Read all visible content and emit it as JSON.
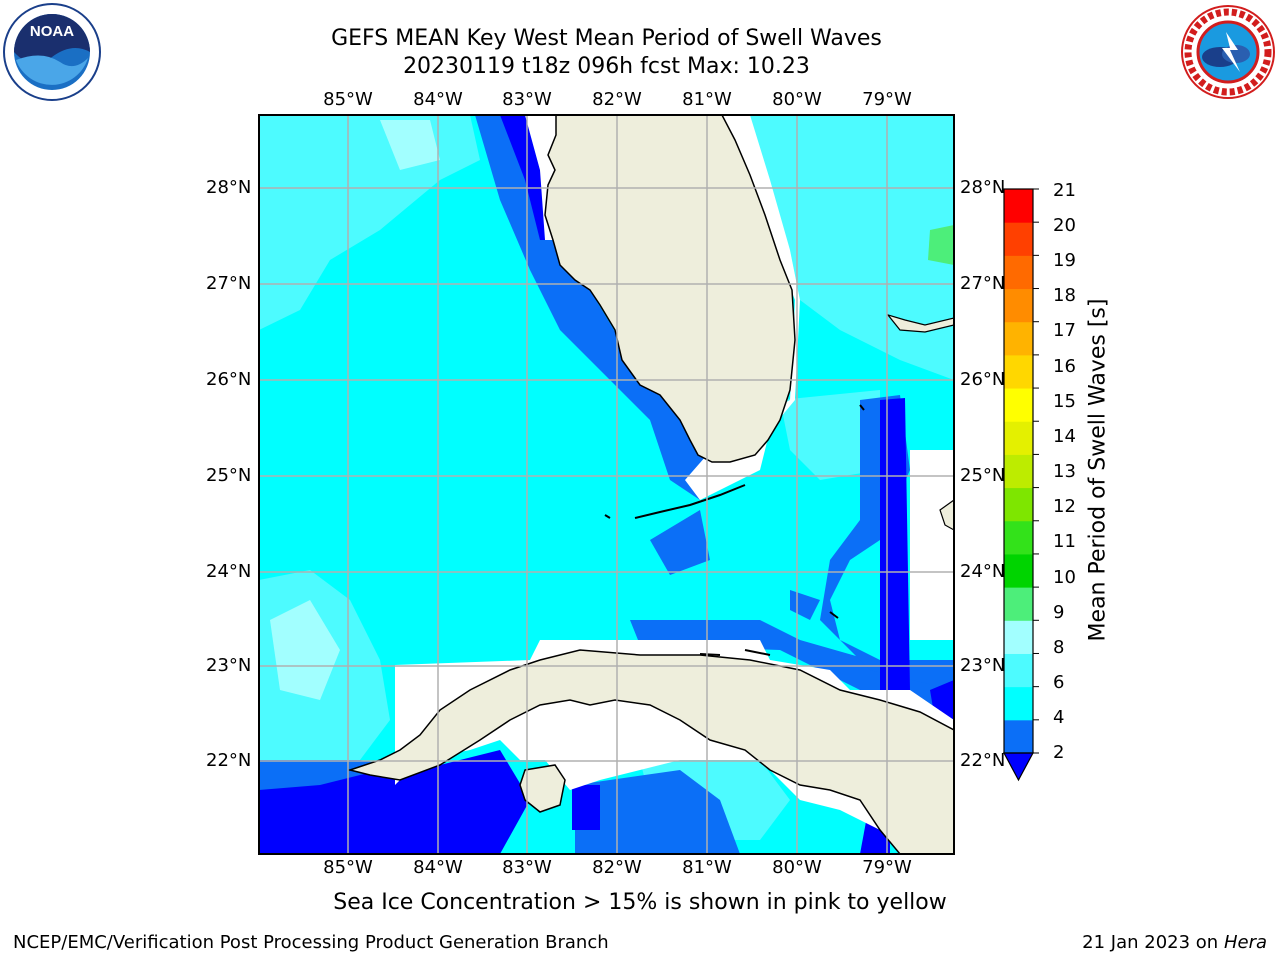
{
  "title": {
    "line1": "GEFS MEAN Key West Mean Period of Swell Waves",
    "line2": "20230119 t18z 096h fcst   Max: 10.23"
  },
  "axes": {
    "lon_labels": [
      "85°W",
      "84°W",
      "83°W",
      "82°W",
      "81°W",
      "80°W",
      "79°W"
    ],
    "lat_labels": [
      "28°N",
      "27°N",
      "26°N",
      "25°N",
      "24°N",
      "23°N",
      "22°N"
    ]
  },
  "colorbar": {
    "title": "Mean Period of Swell Waves [s]",
    "ticks": [
      "21",
      "20",
      "19",
      "18",
      "17",
      "16",
      "15",
      "14",
      "13",
      "12",
      "11",
      "10",
      "9",
      "8",
      "6",
      "4",
      "2"
    ],
    "colors": [
      "#0000ff",
      "#0b6ff7",
      "#00ffff",
      "#4dfbff",
      "#a2ffff",
      "#4dee7a",
      "#00d400",
      "#33e21a",
      "#7ee600",
      "#bdec00",
      "#e4f000",
      "#ffff00",
      "#ffd700",
      "#ffb300",
      "#ff8c00",
      "#ff6a00",
      "#ff4000",
      "#ff0000"
    ]
  },
  "logos": {
    "noaa": {
      "text": "NOAA",
      "ring_text": "NATIONAL OCEANIC AND ATMOSPHERIC ADMINISTRATION · U.S. DEPARTMENT OF COMMERCE"
    },
    "nws": {
      "ring_text": "NATIONAL WEATHER SERVICE"
    }
  },
  "notice": "Sea Ice Concentration > 15% is shown in pink to yellow",
  "footer": {
    "left": "NCEP/EMC/Verification Post Processing Product Generation Branch",
    "right_prefix": "21 Jan 2023 on ",
    "right_host": "Hera"
  },
  "map_colors": {
    "ocean_4_6": "#00ffff",
    "ocean_6_8": "#4dfbff",
    "ocean_8_9": "#a2ffff",
    "ocean_9_10": "#4dee7a",
    "ocean_2_4": "#0b6ff7",
    "ocean_lt2": "#0000ff",
    "land": "#eeeedc",
    "grid": "#b0b0b0"
  }
}
